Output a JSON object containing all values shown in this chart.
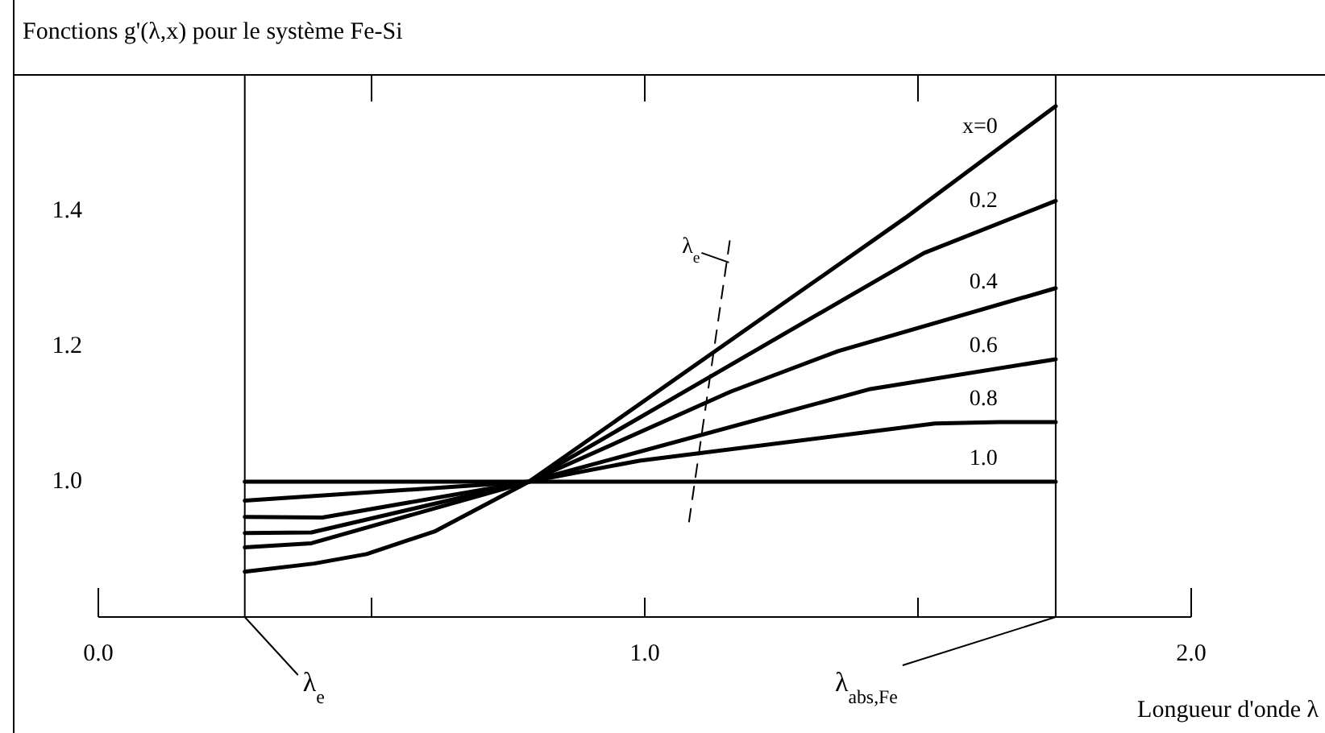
{
  "chart_data": {
    "type": "line",
    "title": "Fonctions g'(λ,x) pour le système Fe-Si",
    "xlabel": "Longueur d'onde λ",
    "x": [
      0.268,
      0.395,
      0.491,
      0.617,
      0.788,
      1.477,
      1.752
    ],
    "series": [
      {
        "name": "x=0",
        "color": "#000000",
        "values": [
          0.867,
          0.879,
          0.893,
          0.927,
          1.0,
          1.39,
          1.555
        ]
      },
      {
        "name": "0.2",
        "color": "#000000",
        "x": [
          0.268,
          0.39,
          0.788,
          1.511,
          1.752
        ],
        "values": [
          0.903,
          0.909,
          1.0,
          1.338,
          1.415
        ]
      },
      {
        "name": "0.4",
        "color": "#000000",
        "x": [
          0.268,
          0.39,
          0.788,
          1.157,
          1.354,
          1.752
        ],
        "values": [
          0.924,
          0.925,
          1.0,
          1.133,
          1.193,
          1.286
        ]
      },
      {
        "name": "0.6",
        "color": "#000000",
        "x": [
          0.268,
          0.41,
          0.788,
          1.413,
          1.752
        ],
        "values": [
          0.948,
          0.947,
          1.0,
          1.137,
          1.181
        ]
      },
      {
        "name": "0.8",
        "color": "#000000",
        "x": [
          0.268,
          0.788,
          0.99,
          1.531,
          1.649,
          1.752
        ],
        "values": [
          0.972,
          1.0,
          1.031,
          1.086,
          1.088,
          1.088
        ]
      },
      {
        "name": "1.0",
        "color": "#000000",
        "x": [
          0.268,
          1.752
        ],
        "values": [
          1.0,
          1.0
        ]
      },
      {
        "color": "#000000",
        "line_style": "dashed",
        "x": [
          1.081,
          1.157
        ],
        "values": [
          0.941,
          1.364
        ]
      }
    ],
    "xlim": [
      0,
      2
    ],
    "xticks": [
      {
        "value": 0,
        "label": "0.0"
      },
      {
        "value": 0.5,
        "label": null
      },
      {
        "value": 1,
        "label": "1.0"
      },
      {
        "value": 1.5,
        "label": null
      },
      {
        "value": 2,
        "label": "2.0"
      }
    ],
    "ylim": [
      0.8,
      1.6
    ],
    "yticks": [
      {
        "value": 1,
        "label": "1.0"
      },
      {
        "value": 1.2,
        "label": "1.2"
      },
      {
        "value": 1.4,
        "label": "1.4"
      }
    ],
    "ref_lines": [
      {
        "axis": "x",
        "value": 0.268,
        "label": "λ$_{e}$"
      },
      {
        "axis": "x",
        "value": 1.752,
        "label": "λ$_{abs,Fe}$"
      }
    ],
    "annotations": [
      {
        "text": "λ$_{e}$",
        "x": 1.154,
        "y": 1.324
      }
    ],
    "grid": false,
    "legend": false,
    "marker": "none",
    "line_style": "solid"
  }
}
